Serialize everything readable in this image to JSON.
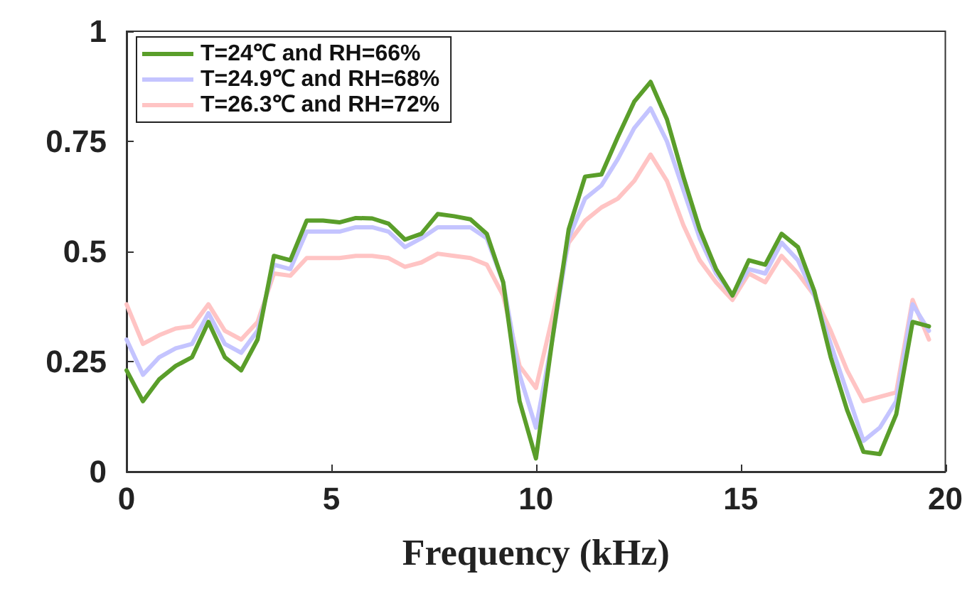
{
  "chart_data": {
    "type": "line",
    "xlabel": "Frequency (kHz)",
    "x": [
      0,
      0.4,
      0.8,
      1.2,
      1.6,
      2.0,
      2.4,
      2.8,
      3.2,
      3.6,
      4.0,
      4.4,
      4.8,
      5.2,
      5.6,
      6.0,
      6.4,
      6.8,
      7.2,
      7.6,
      8.0,
      8.4,
      8.8,
      9.2,
      9.6,
      10.0,
      10.4,
      10.8,
      11.2,
      11.6,
      12.0,
      12.4,
      12.8,
      13.2,
      13.6,
      14.0,
      14.4,
      14.8,
      15.2,
      15.6,
      16.0,
      16.4,
      16.8,
      17.2,
      17.6,
      18.0,
      18.4,
      18.8,
      19.2,
      19.6
    ],
    "series": [
      {
        "name": "T=24℃ and RH=66%",
        "color": "#5a9e2a",
        "values": [
          0.23,
          0.16,
          0.21,
          0.24,
          0.26,
          0.34,
          0.26,
          0.23,
          0.3,
          0.49,
          0.48,
          0.57,
          0.57,
          0.566,
          0.576,
          0.575,
          0.563,
          0.527,
          0.54,
          0.585,
          0.58,
          0.573,
          0.54,
          0.43,
          0.16,
          0.03,
          0.3,
          0.55,
          0.67,
          0.675,
          0.76,
          0.84,
          0.885,
          0.8,
          0.67,
          0.55,
          0.46,
          0.4,
          0.48,
          0.47,
          0.54,
          0.51,
          0.41,
          0.26,
          0.14,
          0.045,
          0.04,
          0.13,
          0.34,
          0.33
        ]
      },
      {
        "name": "T=24.9℃ and RH=68%",
        "color": "#c4c4ff",
        "values": [
          0.3,
          0.22,
          0.26,
          0.28,
          0.29,
          0.36,
          0.29,
          0.27,
          0.32,
          0.47,
          0.46,
          0.545,
          0.545,
          0.545,
          0.555,
          0.555,
          0.545,
          0.51,
          0.53,
          0.555,
          0.555,
          0.555,
          0.53,
          0.43,
          0.22,
          0.1,
          0.3,
          0.53,
          0.62,
          0.65,
          0.71,
          0.78,
          0.825,
          0.75,
          0.64,
          0.53,
          0.45,
          0.4,
          0.46,
          0.45,
          0.52,
          0.48,
          0.4,
          0.29,
          0.18,
          0.07,
          0.1,
          0.16,
          0.38,
          0.32
        ]
      },
      {
        "name": "T=26.3℃ and RH=72%",
        "color": "#ffc4c4",
        "values": [
          0.38,
          0.29,
          0.31,
          0.325,
          0.33,
          0.38,
          0.32,
          0.3,
          0.34,
          0.45,
          0.445,
          0.485,
          0.485,
          0.485,
          0.49,
          0.49,
          0.485,
          0.465,
          0.475,
          0.495,
          0.49,
          0.485,
          0.47,
          0.4,
          0.24,
          0.19,
          0.35,
          0.52,
          0.57,
          0.6,
          0.62,
          0.66,
          0.72,
          0.66,
          0.56,
          0.48,
          0.43,
          0.39,
          0.45,
          0.43,
          0.49,
          0.45,
          0.4,
          0.32,
          0.23,
          0.16,
          0.17,
          0.18,
          0.39,
          0.3
        ]
      }
    ],
    "xlim": [
      0,
      20
    ],
    "xticks": [
      0,
      5,
      10,
      15,
      20
    ],
    "ylim": [
      0,
      1
    ],
    "yticks": [
      0,
      0.25,
      0.5,
      0.75,
      1
    ],
    "grid": false,
    "legend": "top left",
    "marker": "none",
    "line_style": "solid"
  }
}
